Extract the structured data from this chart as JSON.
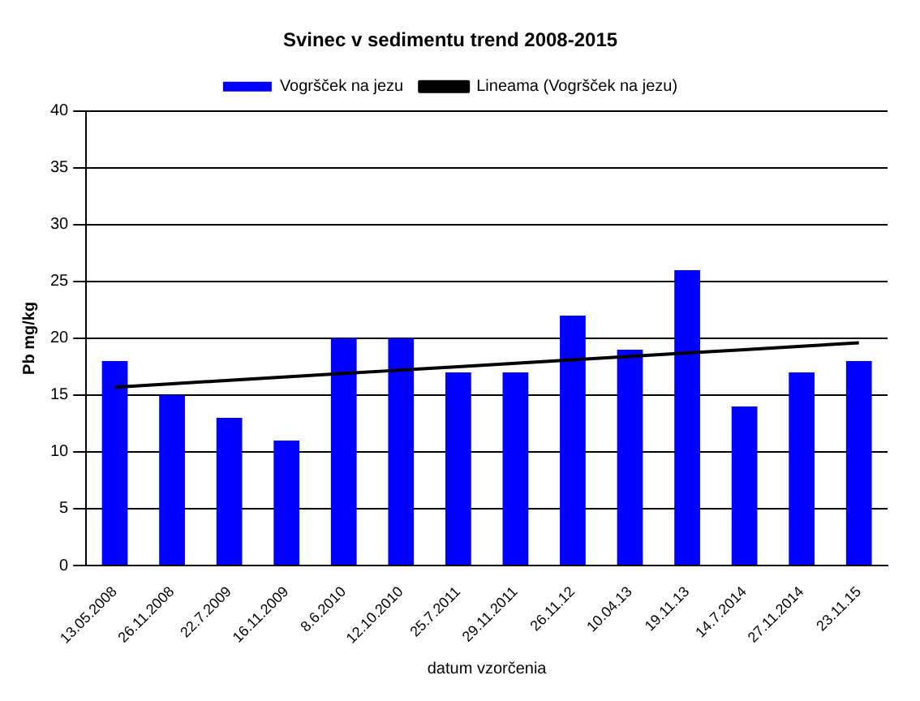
{
  "chart_data": {
    "type": "bar",
    "title": "Svinec v sedimentu trend 2008-2015",
    "xlabel": "datum vzorčenia",
    "ylabel": "Pb mg/kg",
    "categories": [
      "13.05.2008",
      "26.11.2008",
      "22.7.2009",
      "16.11.2009",
      "8.6.2010",
      "12.10.2010",
      "25.7.2011",
      "29.11.2011",
      "26.11.12",
      "10.04.13",
      "19.11.13",
      "14.7.2014",
      "27.11.2014",
      "23.11.15"
    ],
    "series": [
      {
        "name": "Vogršček na jezu",
        "color": "#0000ff",
        "values": [
          18,
          15,
          13,
          11,
          20,
          20,
          17,
          17,
          22,
          19,
          26,
          14,
          17,
          18
        ]
      },
      {
        "name": "Lineama (Vogršček na jezu)",
        "type": "line",
        "color": "#000000",
        "values": [
          15.7,
          16.0,
          16.3,
          16.6,
          16.9,
          17.2,
          17.5,
          17.8,
          18.1,
          18.4,
          18.7,
          19.0,
          19.3,
          19.6
        ]
      }
    ],
    "ylim": [
      0,
      40
    ],
    "yticks": [
      0,
      5,
      10,
      15,
      20,
      25,
      30,
      35,
      40
    ],
    "grid": "y",
    "legend": "top",
    "marker": "none"
  }
}
